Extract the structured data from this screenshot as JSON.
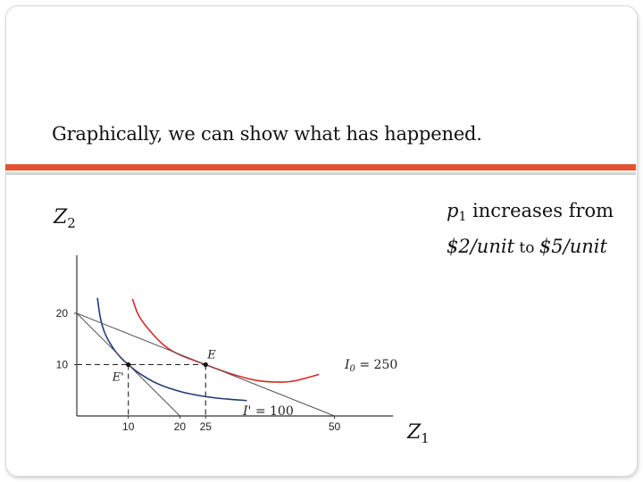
{
  "slide": {
    "title": "Graphically, we can show what has happened."
  },
  "side_note": {
    "var_base": "p",
    "var_sub": "1",
    "text1": " increases from",
    "price_from": "$2/unit",
    "connector": " to ",
    "price_to": "$5/unit"
  },
  "chart_data": {
    "type": "line",
    "xlabel_base": "Z",
    "xlabel_sub": "1",
    "ylabel_base": "Z",
    "ylabel_sub": "2",
    "x_ticks": [
      10,
      20,
      25,
      50
    ],
    "y_ticks": [
      10,
      20
    ],
    "xlim": [
      0,
      60
    ],
    "ylim": [
      0,
      32
    ],
    "grid": false,
    "series": [
      {
        "name": "I0 = 250",
        "color": "#d62a2a",
        "x": [
          10.8,
          12,
          14,
          17,
          20,
          25,
          30,
          35,
          40,
          43,
          47
        ],
        "y": [
          22.8,
          19.6,
          16.8,
          13.7,
          11.9,
          10.0,
          8.2,
          6.9,
          6.6,
          7.0,
          8.1
        ]
      },
      {
        "name": "I' = 100",
        "color": "#1f3a78",
        "x": [
          4,
          4.6,
          5.5,
          7,
          8.5,
          10,
          12,
          15,
          18,
          22,
          27,
          33
        ],
        "y": [
          23.0,
          19.0,
          16.0,
          13.3,
          11.4,
          10.0,
          8.4,
          6.6,
          5.4,
          4.3,
          3.5,
          3.0
        ]
      },
      {
        "name": "budget p1=$2",
        "color": "#555555",
        "x": [
          0,
          50
        ],
        "y": [
          20,
          0
        ]
      },
      {
        "name": "budget p1=$5",
        "color": "#555555",
        "x": [
          0,
          20
        ],
        "y": [
          20,
          0
        ]
      }
    ],
    "points": [
      {
        "label": "E",
        "x": 25,
        "y": 10
      },
      {
        "label": "E'",
        "x": 10,
        "y": 10
      }
    ],
    "curve_labels": [
      {
        "base": "I",
        "sub": "0",
        "rest": " = 250"
      },
      {
        "base": "I'",
        "sub": "",
        "rest": " = 100"
      }
    ]
  }
}
